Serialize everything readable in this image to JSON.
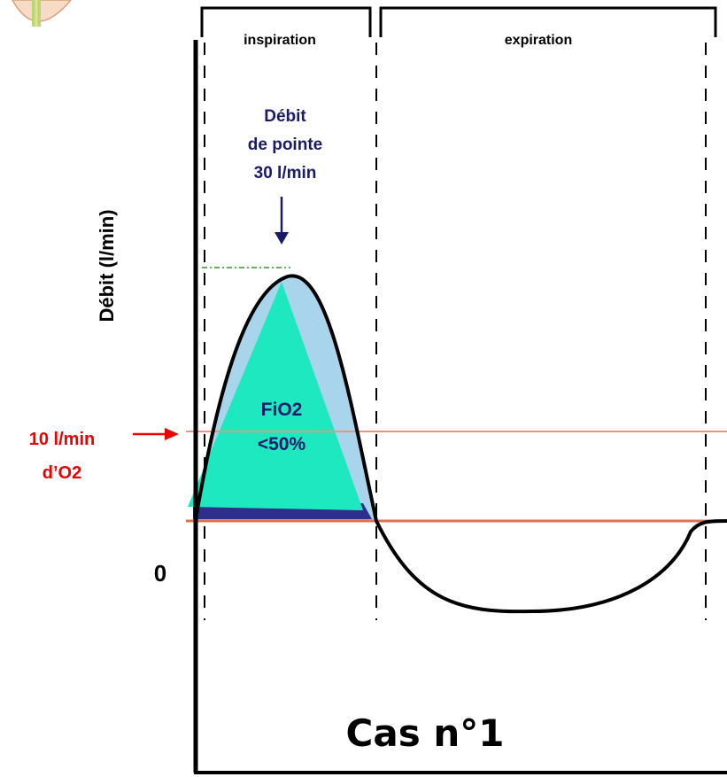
{
  "phases": {
    "inspiration": "inspiration",
    "expiration": "expiration"
  },
  "peak": {
    "line1": "Débit",
    "line2": "de pointe",
    "line3": "30 l/min"
  },
  "y_axis_label": "Débit (l/min)",
  "fio2": {
    "line1": "FiO2",
    "line2": "<50%"
  },
  "oxygen": {
    "line1": "10 l/min",
    "line2": "d’O2"
  },
  "zero_label": "0",
  "case_title": "Cas n°1"
}
